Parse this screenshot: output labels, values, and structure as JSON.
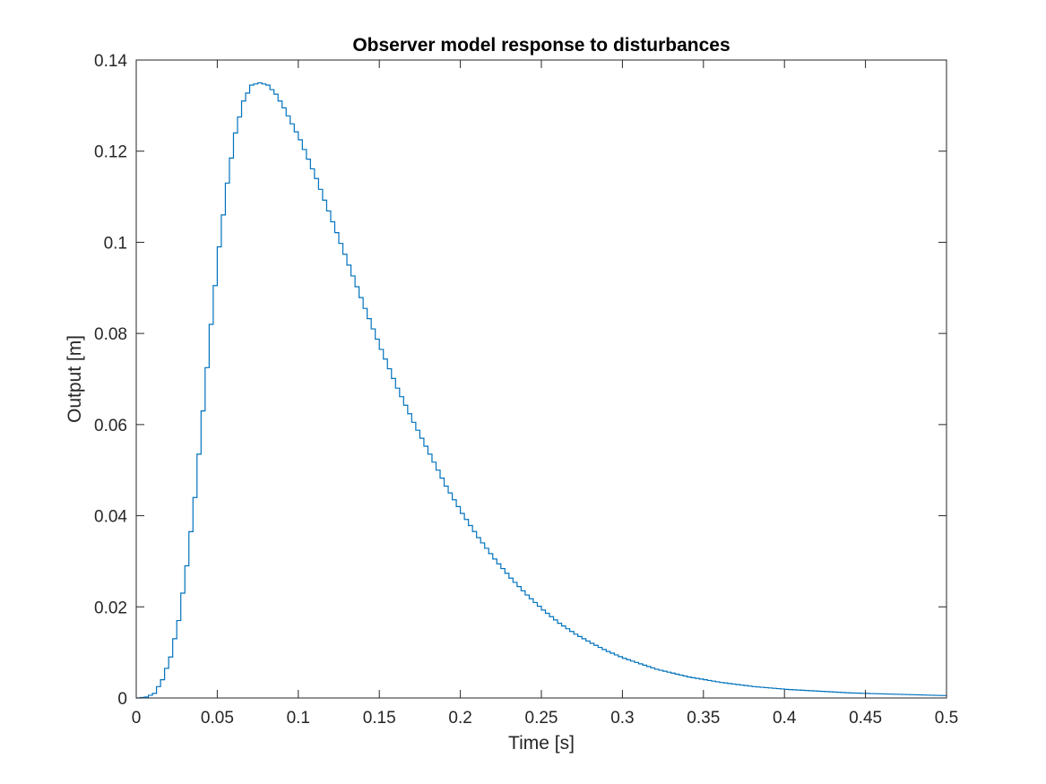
{
  "chart_data": {
    "type": "line",
    "step": true,
    "title": "Observer model response to disturbances",
    "xlabel": "Time [s]",
    "ylabel": "Output [m]",
    "xlim": [
      0,
      0.5
    ],
    "ylim": [
      0,
      0.14
    ],
    "xticks": [
      0,
      0.05,
      0.1,
      0.15,
      0.2,
      0.25,
      0.3,
      0.35,
      0.4,
      0.45,
      0.5
    ],
    "xtick_labels": [
      "0",
      "0.05",
      "0.1",
      "0.15",
      "0.2",
      "0.25",
      "0.3",
      "0.35",
      "0.4",
      "0.45",
      "0.5"
    ],
    "yticks": [
      0,
      0.02,
      0.04,
      0.06,
      0.08,
      0.1,
      0.12,
      0.14
    ],
    "ytick_labels": [
      "0",
      "0.02",
      "0.04",
      "0.06",
      "0.08",
      "0.1",
      "0.12",
      "0.14"
    ],
    "grid": false,
    "line_color": "#0072bd",
    "series": [
      {
        "x": [
          0,
          0.005,
          0.01,
          0.015,
          0.02,
          0.025,
          0.03,
          0.035,
          0.04,
          0.045,
          0.05,
          0.055,
          0.06,
          0.065,
          0.07,
          0.075,
          0.08,
          0.085,
          0.09,
          0.095,
          0.1,
          0.11,
          0.12,
          0.13,
          0.14,
          0.15,
          0.16,
          0.17,
          0.18,
          0.19,
          0.2,
          0.21,
          0.22,
          0.23,
          0.24,
          0.25,
          0.26,
          0.27,
          0.28,
          0.29,
          0.3,
          0.32,
          0.34,
          0.36,
          0.38,
          0.4,
          0.42,
          0.44,
          0.46,
          0.48,
          0.5
        ],
        "y": [
          0,
          0.0002,
          0.001,
          0.004,
          0.009,
          0.017,
          0.029,
          0.044,
          0.063,
          0.082,
          0.099,
          0.113,
          0.124,
          0.131,
          0.1345,
          0.135,
          0.1345,
          0.1325,
          0.1295,
          0.126,
          0.1225,
          0.114,
          0.1045,
          0.095,
          0.0855,
          0.0765,
          0.068,
          0.0605,
          0.0535,
          0.0465,
          0.0405,
          0.0352,
          0.0305,
          0.0263,
          0.0226,
          0.0193,
          0.0164,
          0.014,
          0.012,
          0.0102,
          0.0087,
          0.0063,
          0.0046,
          0.0034,
          0.0025,
          0.0019,
          0.0015,
          0.0011,
          0.0009,
          0.0007,
          0.0005
        ]
      }
    ]
  }
}
